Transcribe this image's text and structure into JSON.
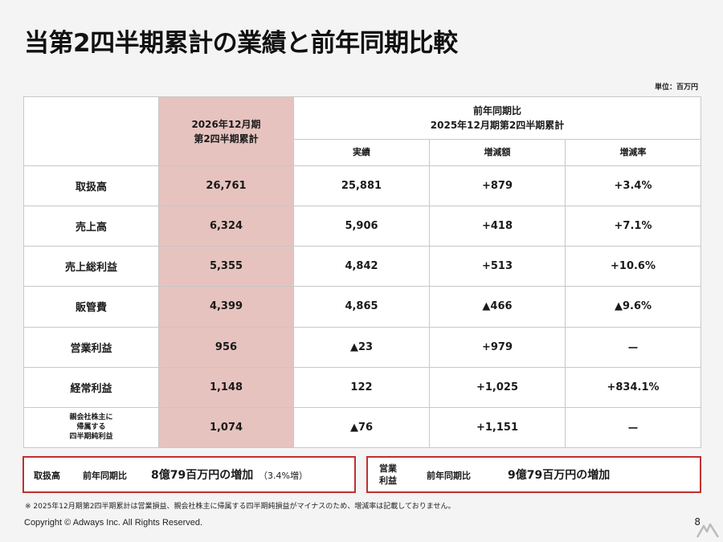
{
  "title": "当第2四半期累計の業績と前年同期比較",
  "unit_label": "単位：百万円",
  "table": {
    "header_current": "2026年12月期\n第2四半期累計",
    "header_prior_group": "前年同期比\n2025年12月期第2四半期累計",
    "header_actual": "実績",
    "header_change_amount": "増減額",
    "header_change_rate": "増減率",
    "rows": [
      {
        "label": "取扱高",
        "current": "26,761",
        "prior": "25,881",
        "change": "+879",
        "rate": "+3.4%"
      },
      {
        "label": "売上高",
        "current": "6,324",
        "prior": "5,906",
        "change": "+418",
        "rate": "+7.1%"
      },
      {
        "label": "売上総利益",
        "current": "5,355",
        "prior": "4,842",
        "change": "+513",
        "rate": "+10.6%"
      },
      {
        "label": "販管費",
        "current": "4,399",
        "prior": "4,865",
        "change": "▲466",
        "rate": "▲9.6%"
      },
      {
        "label": "営業利益",
        "current": "956",
        "prior": "▲23",
        "change": "+979",
        "rate": "ー"
      },
      {
        "label": "経常利益",
        "current": "1,148",
        "prior": "122",
        "change": "+1,025",
        "rate": "+834.1%"
      },
      {
        "label": "親会社株主に\n帰属する\n四半期純利益",
        "current": "1,074",
        "prior": "▲76",
        "change": "+1,151",
        "rate": "ー"
      }
    ]
  },
  "highlight_1": {
    "label": "取扱高",
    "comparison": "前年同期比",
    "value": "8億79百万円の増加",
    "note": "（3.4%増）"
  },
  "highlight_2": {
    "label": "営業\n利益",
    "comparison": "前年同期比",
    "value": "9億79百万円の増加"
  },
  "footnote": "※ 2025年12月期第2四半期累計は営業損益、親会社株主に帰属する四半期純損益がマイナスのため、増減率は記載しておりません。",
  "copyright": "Copyright © Adways Inc. All Rights Reserved.",
  "page_number": "8",
  "colors": {
    "highlight_column": "#e6c3bf",
    "box_border": "#c0302f"
  }
}
